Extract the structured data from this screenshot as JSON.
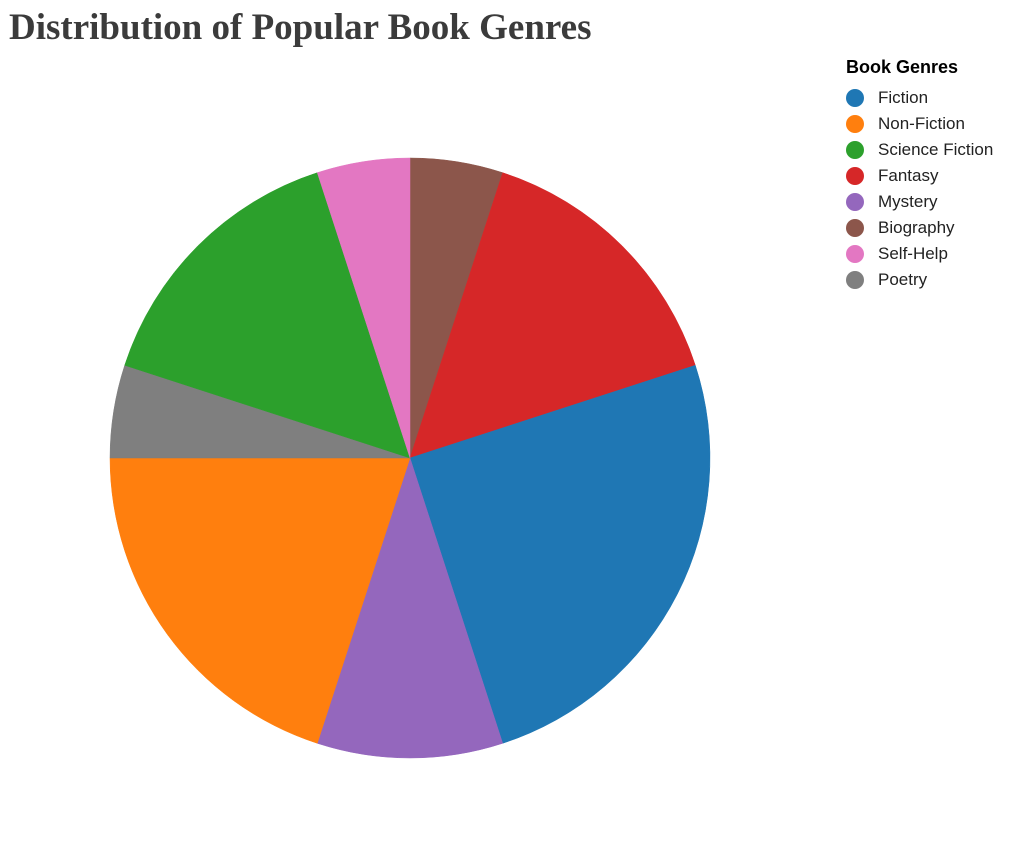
{
  "chart_data": {
    "type": "pie",
    "title": "Distribution of Popular Book Genres",
    "legend_title": "Book Genres",
    "legend_placement": "top-right",
    "categories": [
      "Fiction",
      "Non-Fiction",
      "Science Fiction",
      "Fantasy",
      "Mystery",
      "Biography",
      "Self-Help",
      "Poetry"
    ],
    "values": [
      25,
      20,
      15,
      15,
      10,
      5,
      5,
      5
    ],
    "colors": [
      "#1f77b4",
      "#ff7f0e",
      "#2ca02c",
      "#d62728",
      "#9467bd",
      "#8c564b",
      "#e377c2",
      "#7f7f7f"
    ],
    "slice_order": [
      "Biography",
      "Fantasy",
      "Fiction",
      "Mystery",
      "Non-Fiction",
      "Poetry",
      "Science Fiction",
      "Self-Help"
    ]
  }
}
